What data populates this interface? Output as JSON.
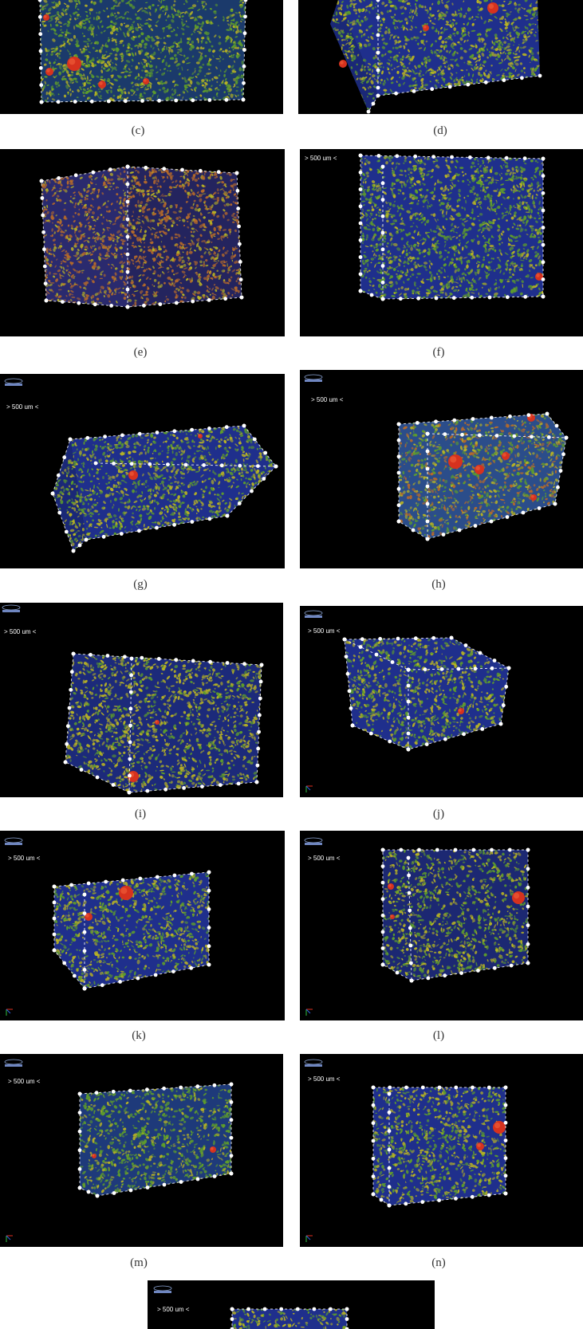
{
  "figure": {
    "panels": [
      {
        "id": "c",
        "caption": "(c)"
      },
      {
        "id": "d",
        "caption": "(d)"
      },
      {
        "id": "e",
        "caption": "(e)"
      },
      {
        "id": "f",
        "caption": "(f)",
        "scale_label": "> 500 um <"
      },
      {
        "id": "g",
        "caption": "(g)",
        "scale_label": "> 500 um <"
      },
      {
        "id": "h",
        "caption": "(h)",
        "scale_label": "> 500 um <"
      },
      {
        "id": "i",
        "caption": "(i)",
        "scale_label": "> 500 um <"
      },
      {
        "id": "j",
        "caption": "(j)",
        "scale_label": "> 500 um <"
      },
      {
        "id": "k",
        "caption": "(k)",
        "scale_label": "> 500 um <"
      },
      {
        "id": "l",
        "caption": "(l)",
        "scale_label": "> 500 um <"
      },
      {
        "id": "m",
        "caption": "(m)",
        "scale_label": "> 500 um <"
      },
      {
        "id": "n",
        "caption": "(n)",
        "scale_label": "> 500 um <"
      },
      {
        "id": "o",
        "scale_label": "> 500 um <"
      }
    ],
    "colors": {
      "background": "#000000",
      "pore_blue": "#1f2f8c",
      "phase_green": "#5f9d2a",
      "phase_yellow": "#b7b224",
      "phase_orange": "#b56a2a",
      "inclusion_red": "#d6321e",
      "marker_white": "#ffffff"
    }
  }
}
